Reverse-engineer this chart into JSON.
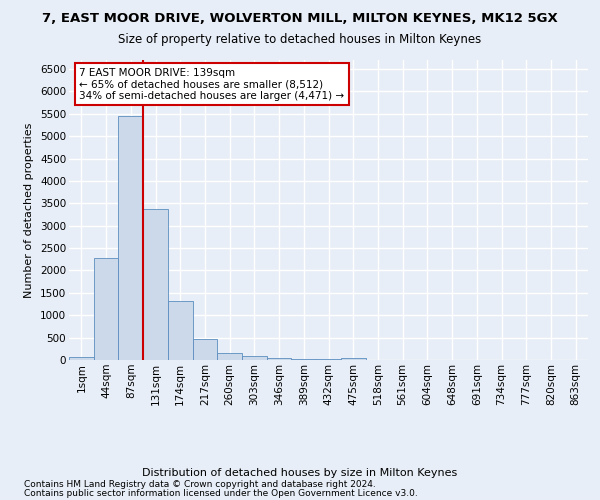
{
  "title1": "7, EAST MOOR DRIVE, WOLVERTON MILL, MILTON KEYNES, MK12 5GX",
  "title2": "Size of property relative to detached houses in Milton Keynes",
  "xlabel": "Distribution of detached houses by size in Milton Keynes",
  "ylabel": "Number of detached properties",
  "footer1": "Contains HM Land Registry data © Crown copyright and database right 2024.",
  "footer2": "Contains public sector information licensed under the Open Government Licence v3.0.",
  "bar_labels": [
    "1sqm",
    "44sqm",
    "87sqm",
    "131sqm",
    "174sqm",
    "217sqm",
    "260sqm",
    "303sqm",
    "346sqm",
    "389sqm",
    "432sqm",
    "475sqm",
    "518sqm",
    "561sqm",
    "604sqm",
    "648sqm",
    "691sqm",
    "734sqm",
    "777sqm",
    "820sqm",
    "863sqm"
  ],
  "bar_values": [
    75,
    2270,
    5450,
    3380,
    1310,
    480,
    160,
    90,
    55,
    30,
    15,
    55,
    5,
    3,
    2,
    1,
    1,
    1,
    0,
    0,
    0
  ],
  "bar_color": "#ccd9eb",
  "bar_edge_color": "#5b8dc0",
  "ylim": [
    0,
    6700
  ],
  "yticks": [
    0,
    500,
    1000,
    1500,
    2000,
    2500,
    3000,
    3500,
    4000,
    4500,
    5000,
    5500,
    6000,
    6500
  ],
  "property_line_x": 2.5,
  "property_line_color": "#cc0000",
  "annotation_text": "7 EAST MOOR DRIVE: 139sqm\n← 65% of detached houses are smaller (8,512)\n34% of semi-detached houses are larger (4,471) →",
  "annotation_box_color": "#ffffff",
  "annotation_box_edge": "#cc0000",
  "bg_color": "#e8eef7",
  "plot_bg_color": "#e8eef7",
  "grid_color": "#ffffff",
  "title1_fontsize": 9.5,
  "title2_fontsize": 8.5,
  "xlabel_fontsize": 8,
  "ylabel_fontsize": 8,
  "tick_fontsize": 7.5,
  "footer_fontsize": 6.5
}
